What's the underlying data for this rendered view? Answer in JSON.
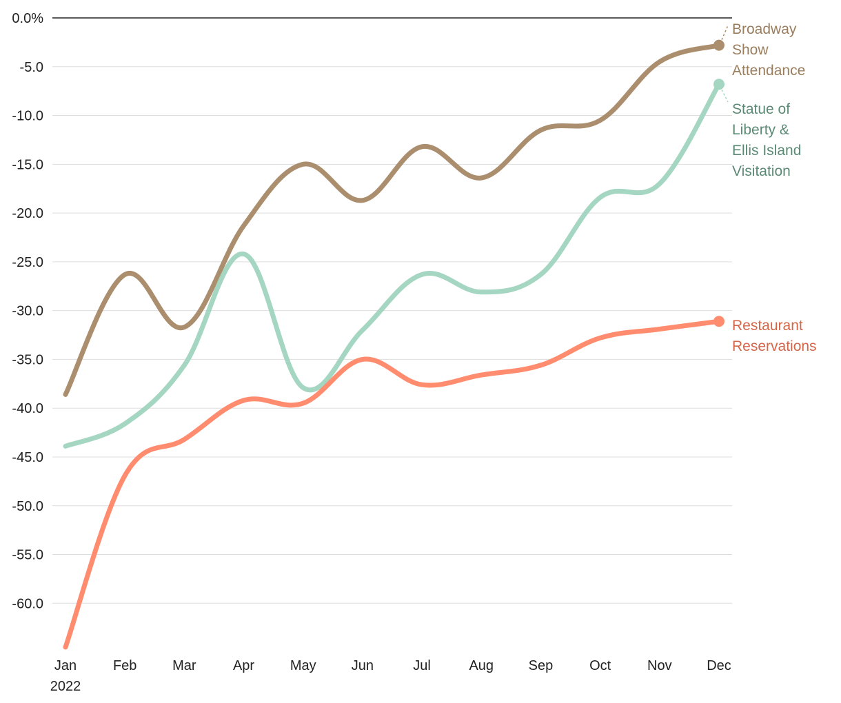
{
  "chart_data": {
    "type": "line",
    "title": "",
    "xlabel": "",
    "ylabel": "",
    "categories": [
      "Jan",
      "Feb",
      "Mar",
      "Apr",
      "May",
      "Jun",
      "Jul",
      "Aug",
      "Sep",
      "Oct",
      "Nov",
      "Dec"
    ],
    "x_sublabel": "2022",
    "y_ticks": [
      "0.0%",
      "-5.0",
      "-10.0",
      "-15.0",
      "-20.0",
      "-25.0",
      "-30.0",
      "-35.0",
      "-40.0",
      "-45.0",
      "-50.0",
      "-55.0",
      "-60.0"
    ],
    "y_tick_values": [
      0,
      -5,
      -10,
      -15,
      -20,
      -25,
      -30,
      -35,
      -40,
      -45,
      -50,
      -55,
      -60
    ],
    "ylim": [
      -64.5,
      0
    ],
    "grid": true,
    "series": [
      {
        "name": "Broadway Show Attendance",
        "label_lines": [
          "Broadway",
          "Show",
          "Attendance"
        ],
        "color": "#AB8E6E",
        "label_color": "#9A7D5D",
        "values": [
          -38.6,
          -26.3,
          -31.7,
          -21.3,
          -15.0,
          -18.7,
          -13.2,
          -16.4,
          -11.5,
          -10.5,
          -4.5,
          -2.8
        ]
      },
      {
        "name": "Statue of Liberty & Ellis Island Visitation",
        "label_lines": [
          "Statue of",
          "Liberty &",
          "Ellis Island",
          "Visitation"
        ],
        "color": "#A4D6C2",
        "label_color": "#5A8A74",
        "values": [
          -43.9,
          -41.6,
          -35.6,
          -24.2,
          -37.9,
          -32.0,
          -26.3,
          -28.1,
          -26.3,
          -18.4,
          -17.0,
          -6.8
        ]
      },
      {
        "name": "Restaurant Reservations",
        "label_lines": [
          "Restaurant",
          "Reservations"
        ],
        "color": "#FF8C6E",
        "label_color": "#D4664A",
        "values": [
          -64.5,
          -46.9,
          -43.2,
          -39.2,
          -39.5,
          -35.0,
          -37.6,
          -36.6,
          -35.6,
          -32.8,
          -31.9,
          -31.1
        ]
      }
    ]
  }
}
